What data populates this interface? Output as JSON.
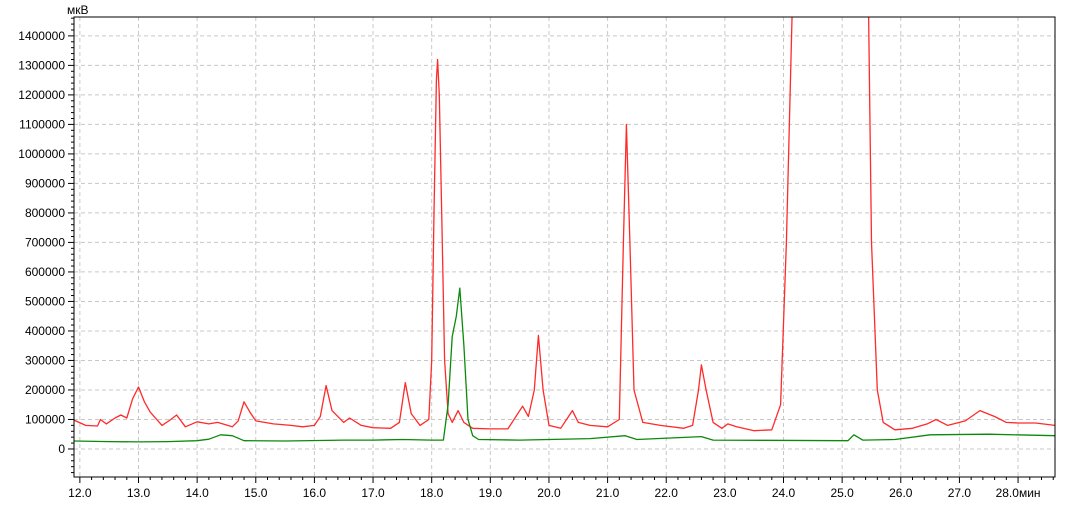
{
  "chart_data": {
    "type": "line",
    "title": "",
    "xlabel": "",
    "x_unit": "мин",
    "ylabel": "мкВ",
    "xlim": [
      11.9,
      28.63
    ],
    "ylim": [
      -95000,
      1464000
    ],
    "x_ticks": [
      "12.0",
      "13.0",
      "14.0",
      "15.0",
      "16.0",
      "17.0",
      "18.0",
      "19.0",
      "20.0",
      "21.0",
      "22.0",
      "23.0",
      "24.0",
      "25.0",
      "26.0",
      "27.0",
      "28.0"
    ],
    "y_ticks": [
      "0",
      "100000",
      "200000",
      "300000",
      "400000",
      "500000",
      "600000",
      "700000",
      "800000",
      "900000",
      "1000000",
      "1100000",
      "1200000",
      "1300000",
      "1400000"
    ],
    "grid": true,
    "series": [
      {
        "color": "#ff2a2a",
        "x": [
          11.9,
          12.1,
          12.3,
          12.35,
          12.45,
          12.6,
          12.7,
          12.8,
          12.9,
          13.0,
          13.1,
          13.2,
          13.4,
          13.55,
          13.65,
          13.8,
          14.0,
          14.2,
          14.35,
          14.6,
          14.7,
          14.8,
          14.9,
          15.0,
          15.3,
          15.6,
          15.8,
          16.0,
          16.1,
          16.2,
          16.3,
          16.5,
          16.6,
          16.8,
          17.0,
          17.3,
          17.45,
          17.55,
          17.65,
          17.8,
          17.95,
          18.0,
          18.04,
          18.08,
          18.1,
          18.13,
          18.17,
          18.22,
          18.28,
          18.35,
          18.45,
          18.55,
          18.7,
          19.0,
          19.3,
          19.55,
          19.65,
          19.75,
          19.82,
          19.9,
          20.0,
          20.2,
          20.4,
          20.5,
          20.7,
          21.0,
          21.2,
          21.27,
          21.32,
          21.38,
          21.45,
          21.6,
          21.9,
          22.3,
          22.45,
          22.55,
          22.6,
          22.68,
          22.8,
          22.95,
          23.05,
          23.2,
          23.5,
          23.8,
          23.95,
          24.05,
          24.15,
          24.25,
          25.35,
          25.45,
          25.5,
          25.6,
          25.7,
          25.9,
          26.2,
          26.45,
          26.6,
          26.8,
          27.1,
          27.35,
          27.6,
          27.8,
          28.0,
          28.3,
          28.63
        ],
        "y": [
          98000,
          80000,
          78000,
          100000,
          85000,
          105000,
          115000,
          105000,
          170000,
          210000,
          160000,
          125000,
          80000,
          100000,
          115000,
          75000,
          92000,
          85000,
          90000,
          75000,
          95000,
          160000,
          125000,
          95000,
          85000,
          80000,
          75000,
          80000,
          110000,
          215000,
          130000,
          90000,
          105000,
          80000,
          72000,
          70000,
          90000,
          225000,
          120000,
          80000,
          100000,
          300000,
          800000,
          1250000,
          1320000,
          1200000,
          800000,
          300000,
          120000,
          90000,
          130000,
          90000,
          70000,
          68000,
          68000,
          145000,
          110000,
          200000,
          385000,
          200000,
          80000,
          70000,
          130000,
          90000,
          80000,
          75000,
          100000,
          700000,
          1100000,
          700000,
          200000,
          90000,
          80000,
          70000,
          80000,
          200000,
          285000,
          200000,
          90000,
          70000,
          85000,
          75000,
          62000,
          65000,
          150000,
          700000,
          1500000,
          1600000,
          1600000,
          1500000,
          700000,
          200000,
          90000,
          65000,
          70000,
          85000,
          100000,
          80000,
          95000,
          130000,
          110000,
          90000,
          88000,
          88000,
          80000
        ]
      },
      {
        "color": "#0a8a0a",
        "x": [
          11.9,
          12.5,
          13.0,
          13.5,
          14.0,
          14.2,
          14.4,
          14.6,
          14.8,
          15.5,
          16.5,
          17.0,
          17.5,
          18.0,
          18.2,
          18.28,
          18.35,
          18.42,
          18.48,
          18.55,
          18.62,
          18.7,
          18.8,
          19.5,
          20.7,
          21.3,
          21.5,
          22.6,
          22.8,
          25.1,
          25.2,
          25.35,
          25.9,
          26.5,
          27.5,
          28.63
        ],
        "y": [
          27000,
          25000,
          24000,
          25000,
          28000,
          33000,
          48000,
          45000,
          28000,
          27000,
          30000,
          30000,
          32000,
          30000,
          30000,
          150000,
          380000,
          450000,
          545000,
          350000,
          100000,
          45000,
          32000,
          30000,
          35000,
          45000,
          32000,
          42000,
          30000,
          28000,
          48000,
          30000,
          32000,
          48000,
          50000,
          45000
        ]
      }
    ]
  }
}
